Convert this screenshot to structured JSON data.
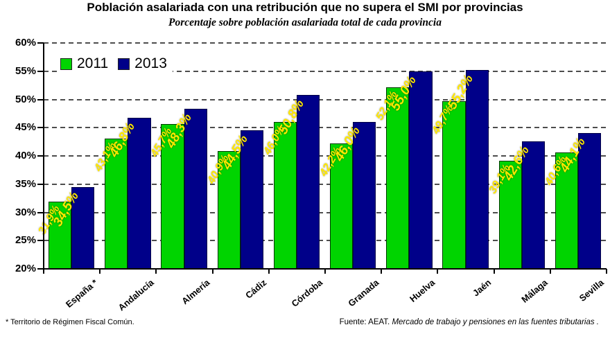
{
  "title": "Población asalariada con una retribución que no supera el SMI por provincias",
  "subtitle": "Porcentaje sobre población asalariada total de cada provincia",
  "footer": {
    "note": "* Territorio de Régimen Fiscal Común.",
    "source_prefix": "Fuente: AEAT. ",
    "source_italic": "Mercado de trabajo y pensiones en las fuentes tributarias ."
  },
  "colors": {
    "series_2011": "#00D400",
    "series_2013": "#000089",
    "bar_label": "#FFE800",
    "grid": "#4d4d4d",
    "axis": "#000000"
  },
  "chart_data": {
    "type": "bar",
    "categories": [
      "España *",
      "Andalucía",
      "Almería",
      "Cádiz",
      "Córdoba",
      "Granada",
      "Huelva",
      "Jaén",
      "Málaga",
      "Sevilla"
    ],
    "series": [
      {
        "name": "2011",
        "values": [
          31.9,
          43.1,
          45.7,
          40.9,
          46.0,
          42.2,
          52.1,
          49.7,
          39.1,
          40.6
        ],
        "labels": [
          "31,9%",
          "43,1%",
          "45,7%",
          "40,9%",
          "46,0%",
          "42,2%",
          "52,1%",
          "49,7%",
          "39,1%",
          "40,6%"
        ]
      },
      {
        "name": "2013",
        "values": [
          34.5,
          46.8,
          48.3,
          44.5,
          50.8,
          46.0,
          55.0,
          55.2,
          42.6,
          44.1
        ],
        "labels": [
          "34,5%",
          "46,8%",
          "48,3%",
          "44,5%",
          "50,8%",
          "46,0%",
          "55,0%",
          "55,2%",
          "42,6%",
          "44,1%"
        ]
      }
    ],
    "yticks": [
      {
        "label": "60%",
        "value": 60
      },
      {
        "label": "55%",
        "value": 55
      },
      {
        "label": "50%",
        "value": 50
      },
      {
        "label": "45%",
        "value": 45
      },
      {
        "label": "40%",
        "value": 40
      },
      {
        "label": "35%",
        "value": 35
      },
      {
        "label": "30%",
        "value": 30
      },
      {
        "label": "25%",
        "value": 25
      },
      {
        "label": "20%",
        "value": 20
      }
    ],
    "ylim": [
      20,
      60
    ],
    "grid": true,
    "legend_position": "top-left-inside"
  }
}
